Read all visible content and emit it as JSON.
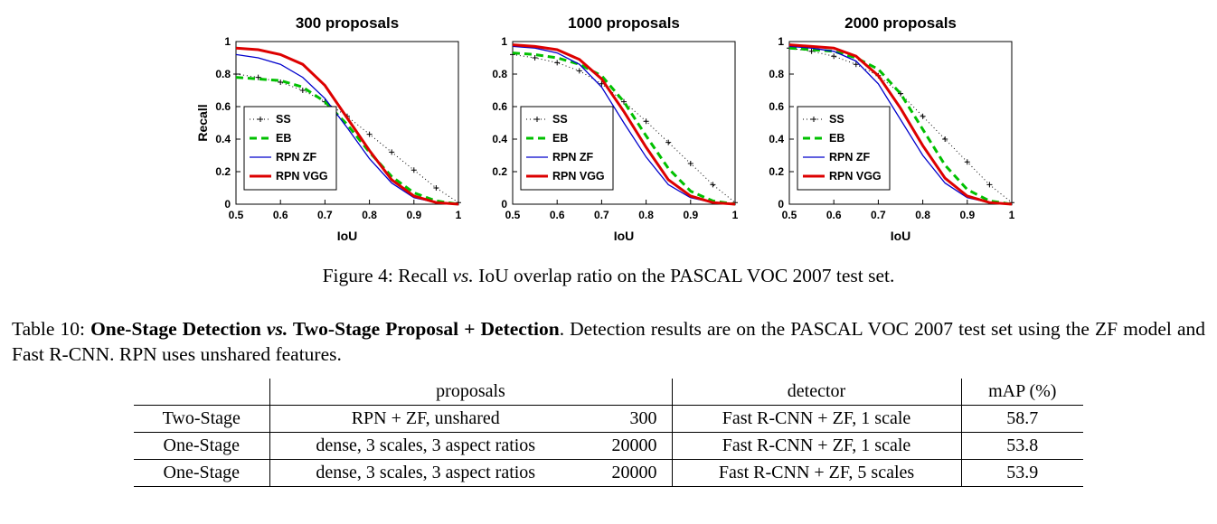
{
  "figure": {
    "caption": {
      "prefix": "Figure 4: Recall ",
      "vs": "vs.",
      "suffix": " IoU overlap ratio on the PASCAL VOC 2007 test set."
    }
  },
  "chart_data": [
    {
      "type": "line",
      "title": "300 proposals",
      "xlabel": "IoU",
      "ylabel": "Recall",
      "xlim": [
        0.5,
        1
      ],
      "ylim": [
        0,
        1
      ],
      "xticks": [
        "0.5",
        "0.6",
        "0.7",
        "0.8",
        "0.9",
        "1"
      ],
      "yticks": [
        "0",
        "0.2",
        "0.4",
        "0.6",
        "0.8",
        "1"
      ],
      "legend_position": "middle-left",
      "x": [
        0.5,
        0.55,
        0.6,
        0.65,
        0.7,
        0.75,
        0.8,
        0.85,
        0.9,
        0.95,
        1.0
      ],
      "series": [
        {
          "name": "SS",
          "color": "#000000",
          "dash": "1,3",
          "width": 1,
          "marker": "plus",
          "values": [
            0.8,
            0.78,
            0.75,
            0.7,
            0.63,
            0.54,
            0.43,
            0.32,
            0.21,
            0.1,
            0.01
          ]
        },
        {
          "name": "EB",
          "color": "#00c000",
          "dash": "8,5",
          "width": 3,
          "values": [
            0.78,
            0.77,
            0.76,
            0.72,
            0.63,
            0.49,
            0.32,
            0.17,
            0.07,
            0.02,
            0.0
          ]
        },
        {
          "name": "RPN ZF",
          "color": "#0000cc",
          "width": 1.3,
          "values": [
            0.92,
            0.9,
            0.86,
            0.78,
            0.65,
            0.47,
            0.28,
            0.13,
            0.04,
            0.01,
            0.0
          ]
        },
        {
          "name": "RPN VGG",
          "color": "#dd0000",
          "width": 3,
          "values": [
            0.96,
            0.95,
            0.92,
            0.86,
            0.73,
            0.53,
            0.33,
            0.15,
            0.05,
            0.01,
            0.0
          ]
        }
      ]
    },
    {
      "type": "line",
      "title": "1000 proposals",
      "xlabel": "IoU",
      "ylabel": "",
      "xlim": [
        0.5,
        1
      ],
      "ylim": [
        0,
        1
      ],
      "xticks": [
        "0.5",
        "0.6",
        "0.7",
        "0.8",
        "0.9",
        "1"
      ],
      "yticks": [
        "0",
        "0.2",
        "0.4",
        "0.6",
        "0.8",
        "1"
      ],
      "legend_position": "middle-left",
      "x": [
        0.5,
        0.55,
        0.6,
        0.65,
        0.7,
        0.75,
        0.8,
        0.85,
        0.9,
        0.95,
        1.0
      ],
      "series": [
        {
          "name": "SS",
          "color": "#000000",
          "dash": "1,3",
          "width": 1,
          "marker": "plus",
          "values": [
            0.92,
            0.9,
            0.87,
            0.82,
            0.74,
            0.63,
            0.51,
            0.38,
            0.25,
            0.12,
            0.01
          ]
        },
        {
          "name": "EB",
          "color": "#00c000",
          "dash": "8,5",
          "width": 3,
          "values": [
            0.93,
            0.92,
            0.9,
            0.86,
            0.79,
            0.63,
            0.42,
            0.22,
            0.08,
            0.02,
            0.0
          ]
        },
        {
          "name": "RPN ZF",
          "color": "#0000cc",
          "width": 1.3,
          "values": [
            0.97,
            0.96,
            0.93,
            0.86,
            0.72,
            0.5,
            0.29,
            0.12,
            0.04,
            0.01,
            0.0
          ]
        },
        {
          "name": "RPN VGG",
          "color": "#dd0000",
          "width": 3,
          "values": [
            0.98,
            0.97,
            0.95,
            0.89,
            0.77,
            0.57,
            0.35,
            0.15,
            0.05,
            0.01,
            0.0
          ]
        }
      ]
    },
    {
      "type": "line",
      "title": "2000 proposals",
      "xlabel": "IoU",
      "ylabel": "",
      "xlim": [
        0.5,
        1
      ],
      "ylim": [
        0,
        1
      ],
      "xticks": [
        "0.5",
        "0.6",
        "0.7",
        "0.8",
        "0.9",
        "1"
      ],
      "yticks": [
        "0",
        "0.2",
        "0.4",
        "0.6",
        "0.8",
        "1"
      ],
      "legend_position": "middle-left",
      "x": [
        0.5,
        0.55,
        0.6,
        0.65,
        0.7,
        0.75,
        0.8,
        0.85,
        0.9,
        0.95,
        1.0
      ],
      "series": [
        {
          "name": "SS",
          "color": "#000000",
          "dash": "1,3",
          "width": 1,
          "marker": "plus",
          "values": [
            0.96,
            0.94,
            0.91,
            0.86,
            0.79,
            0.68,
            0.54,
            0.4,
            0.26,
            0.12,
            0.01
          ]
        },
        {
          "name": "EB",
          "color": "#00c000",
          "dash": "8,5",
          "width": 3,
          "values": [
            0.96,
            0.95,
            0.94,
            0.9,
            0.83,
            0.68,
            0.46,
            0.24,
            0.09,
            0.02,
            0.0
          ]
        },
        {
          "name": "RPN ZF",
          "color": "#0000cc",
          "width": 1.3,
          "values": [
            0.97,
            0.96,
            0.94,
            0.88,
            0.74,
            0.52,
            0.3,
            0.13,
            0.04,
            0.01,
            0.0
          ]
        },
        {
          "name": "RPN VGG",
          "color": "#dd0000",
          "width": 3,
          "values": [
            0.98,
            0.97,
            0.96,
            0.91,
            0.79,
            0.59,
            0.36,
            0.16,
            0.05,
            0.01,
            0.0
          ]
        }
      ]
    }
  ],
  "table_caption": {
    "label": "Table 10: ",
    "bold_prefix": "One-Stage Detection ",
    "bold_vs": "vs.",
    "bold_suffix": " Two-Stage Proposal + Detection",
    "rest": ". Detection results are on the PASCAL VOC 2007 test set using the ZF model and Fast R-CNN. RPN uses unshared features."
  },
  "table": {
    "headers": {
      "stage": "",
      "proposals": "proposals",
      "detector": "detector",
      "map": "mAP (%)"
    },
    "rows": [
      {
        "stage": "Two-Stage",
        "proposal_method": "RPN + ZF, unshared",
        "proposal_count": "300",
        "detector": "Fast R-CNN + ZF, 1 scale",
        "map": "58.7"
      },
      {
        "stage": "One-Stage",
        "proposal_method": "dense, 3 scales, 3 aspect ratios",
        "proposal_count": "20000",
        "detector": "Fast R-CNN + ZF, 1 scale",
        "map": "53.8"
      },
      {
        "stage": "One-Stage",
        "proposal_method": "dense, 3 scales, 3 aspect ratios",
        "proposal_count": "20000",
        "detector": "Fast R-CNN + ZF, 5 scales",
        "map": "53.9"
      }
    ]
  }
}
